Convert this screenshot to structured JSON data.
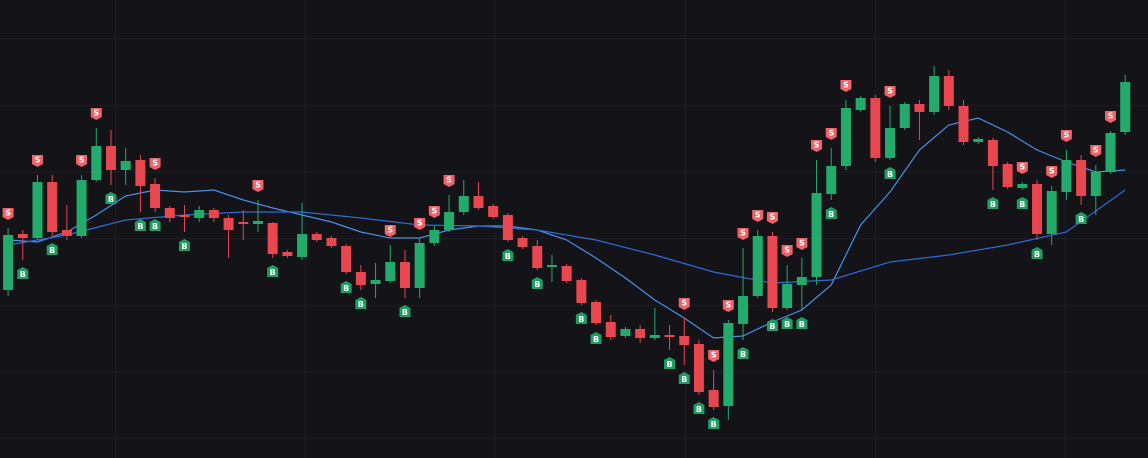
{
  "chart_data": {
    "type": "candlestick",
    "xlim": [
      -0.55,
      77.55
    ],
    "ylim": [
      0,
      458
    ],
    "up_color": "#22ab6b",
    "down_color": "#e8474f",
    "x": [
      0,
      1,
      2,
      3,
      4,
      5,
      6,
      7,
      8,
      9,
      10,
      11,
      12,
      13,
      14,
      15,
      16,
      17,
      18,
      19,
      20,
      21,
      22,
      23,
      24,
      25,
      26,
      27,
      28,
      29,
      30,
      31,
      32,
      33,
      34,
      35,
      36,
      37,
      38,
      39,
      40,
      41,
      42,
      43,
      44,
      45,
      46,
      47,
      48,
      49,
      50,
      51,
      52,
      53,
      54,
      55,
      56,
      57,
      58,
      59,
      60,
      61,
      62,
      63,
      64,
      65,
      66,
      67,
      68,
      69,
      70,
      71,
      72,
      73,
      74,
      75,
      76
    ],
    "open": [
      168,
      224,
      220,
      276,
      228,
      222,
      278,
      312,
      288,
      298,
      274,
      250,
      243,
      240,
      248,
      240,
      236,
      234,
      235,
      206,
      201,
      224,
      220,
      212,
      186,
      174,
      177,
      196,
      170,
      215,
      228,
      246,
      262,
      252,
      243,
      220,
      212,
      191,
      192,
      178,
      156,
      136,
      122,
      129,
      120,
      123,
      122,
      114,
      68,
      52,
      134,
      162,
      222,
      150,
      173,
      181,
      264,
      292,
      348,
      360,
      300,
      330,
      354,
      346,
      382,
      352,
      316,
      318,
      294,
      270,
      274,
      224,
      266,
      298,
      262,
      286,
      326
    ],
    "high": [
      230,
      228,
      283,
      283,
      253,
      283,
      330,
      328,
      310,
      303,
      280,
      252,
      253,
      252,
      250,
      243,
      248,
      258,
      236,
      208,
      255,
      226,
      222,
      214,
      193,
      195,
      213,
      208,
      220,
      232,
      263,
      278,
      276,
      254,
      245,
      222,
      218,
      203,
      194,
      180,
      158,
      143,
      131,
      133,
      150,
      133,
      140,
      118,
      88,
      138,
      210,
      228,
      226,
      193,
      200,
      298,
      310,
      358,
      362,
      363,
      352,
      356,
      358,
      392,
      388,
      358,
      321,
      320,
      296,
      276,
      278,
      272,
      308,
      303,
      293,
      327,
      383
    ],
    "low": [
      162,
      198,
      218,
      222,
      218,
      220,
      276,
      273,
      273,
      246,
      246,
      236,
      226,
      236,
      236,
      200,
      218,
      226,
      200,
      200,
      198,
      216,
      210,
      184,
      168,
      160,
      175,
      160,
      160,
      212,
      226,
      243,
      248,
      239,
      216,
      209,
      188,
      176,
      175,
      153,
      133,
      118,
      120,
      115,
      118,
      108,
      93,
      63,
      48,
      38,
      118,
      160,
      146,
      148,
      148,
      173,
      258,
      288,
      346,
      296,
      298,
      328,
      318,
      343,
      348,
      313,
      314,
      268,
      269,
      268,
      218,
      213,
      258,
      253,
      243,
      284,
      323
    ],
    "close": [
      223,
      220,
      276,
      226,
      222,
      278,
      312,
      288,
      297,
      272,
      250,
      240,
      241,
      248,
      240,
      228,
      234,
      237,
      204,
      202,
      224,
      218,
      212,
      186,
      173,
      178,
      196,
      170,
      215,
      228,
      246,
      262,
      250,
      241,
      218,
      211,
      190,
      193,
      177,
      155,
      135,
      121,
      129,
      120,
      123,
      121,
      113,
      66,
      51,
      135,
      162,
      222,
      150,
      174,
      181,
      265,
      292,
      350,
      360,
      300,
      330,
      354,
      346,
      382,
      352,
      316,
      319,
      292,
      271,
      274,
      224,
      267,
      298,
      262,
      286,
      325,
      376
    ],
    "series": [
      {
        "color": "#4a90e8",
        "x": [
          0,
          2,
          4,
          6,
          8,
          10,
          12,
          14,
          16,
          18,
          20,
          22,
          24,
          26,
          28,
          30,
          32,
          34,
          36,
          38,
          40,
          42,
          44,
          46,
          48,
          50,
          52,
          54,
          56,
          58,
          60,
          62,
          64,
          66,
          68,
          70,
          72,
          74,
          76
        ],
        "values": [
          218,
          216,
          226,
          243,
          262,
          268,
          266,
          268,
          258,
          250,
          243,
          236,
          226,
          220,
          220,
          228,
          232,
          232,
          228,
          218,
          200,
          180,
          158,
          140,
          120,
          122,
          136,
          148,
          173,
          233,
          266,
          308,
          333,
          340,
          326,
          308,
          296,
          286,
          288
        ]
      },
      {
        "color": "#2d6cd2",
        "x": [
          0,
          4,
          8,
          12,
          16,
          20,
          24,
          28,
          32,
          36,
          40,
          44,
          48,
          52,
          56,
          60,
          64,
          68,
          72,
          76
        ],
        "values": [
          213,
          223,
          238,
          243,
          246,
          246,
          240,
          233,
          232,
          228,
          218,
          203,
          186,
          175,
          178,
          196,
          203,
          213,
          226,
          268
        ]
      }
    ],
    "signals": [
      {
        "index": 0,
        "label": "S"
      },
      {
        "index": 2,
        "label": "S"
      },
      {
        "index": 5,
        "label": "S"
      },
      {
        "index": 6,
        "label": "S"
      },
      {
        "index": 10,
        "label": "S"
      },
      {
        "index": 17,
        "label": "S"
      },
      {
        "index": 26,
        "label": "S"
      },
      {
        "index": 28,
        "label": "S"
      },
      {
        "index": 29,
        "label": "S"
      },
      {
        "index": 30,
        "label": "S"
      },
      {
        "index": 46,
        "label": "S"
      },
      {
        "index": 48,
        "label": "S"
      },
      {
        "index": 49,
        "label": "S"
      },
      {
        "index": 50,
        "label": "S"
      },
      {
        "index": 51,
        "label": "S"
      },
      {
        "index": 52,
        "label": "S"
      },
      {
        "index": 53,
        "label": "S"
      },
      {
        "index": 54,
        "label": "S"
      },
      {
        "index": 55,
        "label": "S"
      },
      {
        "index": 56,
        "label": "S"
      },
      {
        "index": 57,
        "label": "S"
      },
      {
        "index": 60,
        "label": "S"
      },
      {
        "index": 69,
        "label": "S"
      },
      {
        "index": 71,
        "label": "S"
      },
      {
        "index": 72,
        "label": "S"
      },
      {
        "index": 74,
        "label": "S"
      },
      {
        "index": 75,
        "label": "S"
      },
      {
        "index": 1,
        "label": "B"
      },
      {
        "index": 3,
        "label": "B"
      },
      {
        "index": 7,
        "label": "B"
      },
      {
        "index": 9,
        "label": "B"
      },
      {
        "index": 10,
        "label": "B"
      },
      {
        "index": 12,
        "label": "B"
      },
      {
        "index": 18,
        "label": "B"
      },
      {
        "index": 23,
        "label": "B"
      },
      {
        "index": 24,
        "label": "B"
      },
      {
        "index": 27,
        "label": "B"
      },
      {
        "index": 34,
        "label": "B"
      },
      {
        "index": 36,
        "label": "B"
      },
      {
        "index": 39,
        "label": "B"
      },
      {
        "index": 40,
        "label": "B"
      },
      {
        "index": 45,
        "label": "B"
      },
      {
        "index": 46,
        "label": "B"
      },
      {
        "index": 47,
        "label": "B"
      },
      {
        "index": 48,
        "label": "B"
      },
      {
        "index": 50,
        "label": "B"
      },
      {
        "index": 52,
        "label": "B"
      },
      {
        "index": 53,
        "label": "B"
      },
      {
        "index": 54,
        "label": "B"
      },
      {
        "index": 56,
        "label": "B"
      },
      {
        "index": 60,
        "label": "B"
      },
      {
        "index": 67,
        "label": "B"
      },
      {
        "index": 69,
        "label": "B"
      },
      {
        "index": 70,
        "label": "B"
      },
      {
        "index": 73,
        "label": "B"
      }
    ]
  }
}
